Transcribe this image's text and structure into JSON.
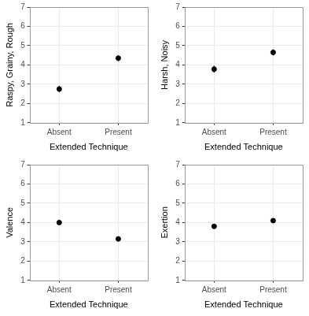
{
  "chart_data": [
    {
      "type": "scatter",
      "x_label": "Extended Technique",
      "y_label": "Raspy, Grainy, Rough",
      "categories": [
        "Absent",
        "Present"
      ],
      "values": [
        2.75,
        4.35
      ],
      "errors": [
        0.15,
        0.15
      ],
      "ylim": [
        1,
        7
      ],
      "yticks": [
        1,
        2,
        3,
        4,
        5,
        6,
        7
      ],
      "grid": true,
      "color": "#000000",
      "marker": "circle"
    },
    {
      "type": "scatter",
      "x_label": "Extended Technique",
      "y_label": "Harsh, Noisy",
      "categories": [
        "Absent",
        "Present"
      ],
      "values": [
        3.78,
        4.65
      ],
      "errors": [
        0.17,
        0.15
      ],
      "ylim": [
        1,
        7
      ],
      "yticks": [
        1,
        2,
        3,
        4,
        5,
        6,
        7
      ],
      "grid": true,
      "color": "#000000",
      "marker": "circle"
    },
    {
      "type": "scatter",
      "x_label": "Extended Technique",
      "y_label": "Valence",
      "categories": [
        "Absent",
        "Present"
      ],
      "values": [
        4.0,
        3.15
      ],
      "errors": [
        0.1,
        0.08
      ],
      "ylim": [
        1,
        7
      ],
      "yticks": [
        1,
        2,
        3,
        4,
        5,
        6,
        7
      ],
      "grid": true,
      "color": "#000000",
      "marker": "circle"
    },
    {
      "type": "scatter",
      "x_label": "Extended Technique",
      "y_label": "Exertion",
      "categories": [
        "Absent",
        "Present"
      ],
      "values": [
        3.8,
        4.1
      ],
      "errors": [
        0.08,
        0.1
      ],
      "ylim": [
        1,
        7
      ],
      "yticks": [
        1,
        2,
        3,
        4,
        5,
        6,
        7
      ],
      "grid": true,
      "color": "#000000",
      "marker": "circle"
    }
  ]
}
